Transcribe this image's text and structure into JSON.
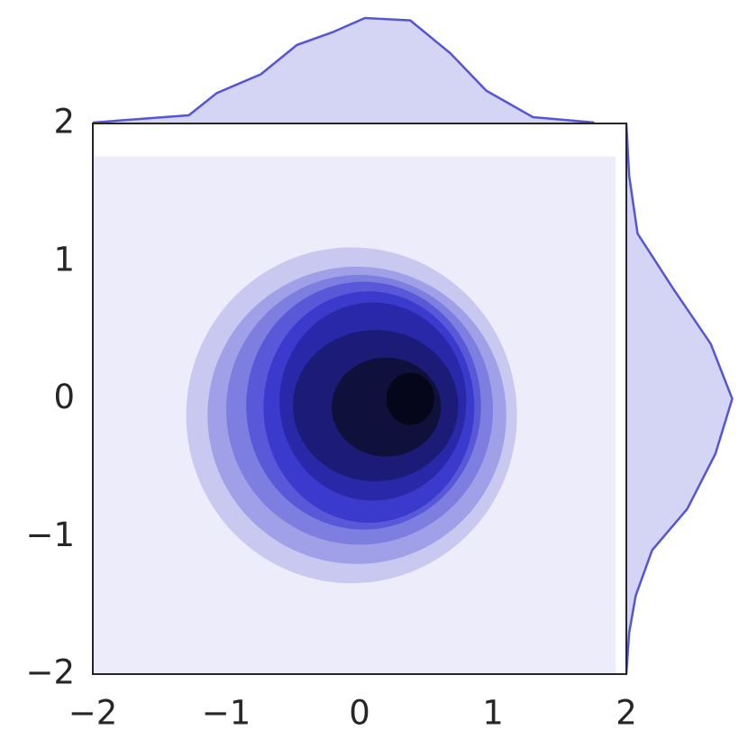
{
  "chart_data": {
    "type": "kde_joint",
    "xlim": [
      -2,
      2
    ],
    "ylim": [
      -2,
      2
    ],
    "xticks": [
      {
        "value": -2,
        "label": "−2"
      },
      {
        "value": -1,
        "label": "−1"
      },
      0,
      1,
      2
    ],
    "yticks": [
      {
        "value": -2,
        "label": "−2"
      },
      {
        "value": -1,
        "label": "−1"
      },
      0,
      1,
      2
    ],
    "fill_region": {
      "x": [
        -2,
        1.92
      ],
      "y": [
        -2,
        1.76
      ],
      "color": "#ececfa"
    },
    "contours": [
      {
        "cx": -0.06,
        "cy": -0.12,
        "rx": 1.24,
        "ry": 1.22,
        "color": "#c8c8f0"
      },
      {
        "cx": -0.02,
        "cy": -0.12,
        "rx": 1.12,
        "ry": 1.08,
        "color": "#a0a0e8"
      },
      {
        "cx": 0,
        "cy": -0.08,
        "rx": 1.0,
        "ry": 0.98,
        "color": "#7e7ee0"
      },
      {
        "cx": 0.03,
        "cy": -0.05,
        "rx": 0.88,
        "ry": 0.9,
        "color": "#5858d8"
      },
      {
        "cx": 0.07,
        "cy": -0.06,
        "rx": 0.79,
        "ry": 0.84,
        "color": "#3a3acc"
      },
      {
        "cx": 0.1,
        "cy": -0.02,
        "rx": 0.7,
        "ry": 0.72,
        "color": "#2828a8"
      },
      {
        "cx": 0.12,
        "cy": -0.05,
        "rx": 0.62,
        "ry": 0.55,
        "color": "#1c1c78"
      },
      {
        "cx": 0.2,
        "cy": -0.06,
        "rx": 0.41,
        "ry": 0.36,
        "color": "#10103c"
      },
      {
        "cx": 0.38,
        "cy": 0,
        "rx": 0.18,
        "ry": 0.19,
        "color": "#06061a"
      }
    ],
    "marginal_x": {
      "x": [
        -2,
        -1.28,
        -1.07,
        -0.74,
        -0.47,
        -0.2,
        0.04,
        0.38,
        0.68,
        0.95,
        1.3,
        1.76
      ],
      "values": [
        0.004,
        0.035,
        0.13,
        0.21,
        0.335,
        0.39,
        0.45,
        0.44,
        0.3,
        0.14,
        0.027,
        0.004
      ],
      "color": "#5555d5"
    },
    "marginal_y": {
      "y": [
        2,
        1.62,
        1.2,
        0.8,
        0.4,
        0,
        -0.4,
        -0.8,
        -1.1,
        -1.43,
        -1.7,
        -2
      ],
      "values": [
        0,
        0.012,
        0.048,
        0.2,
        0.36,
        0.452,
        0.38,
        0.26,
        0.11,
        0.04,
        0.012,
        0
      ],
      "color": "#5555d5"
    }
  }
}
